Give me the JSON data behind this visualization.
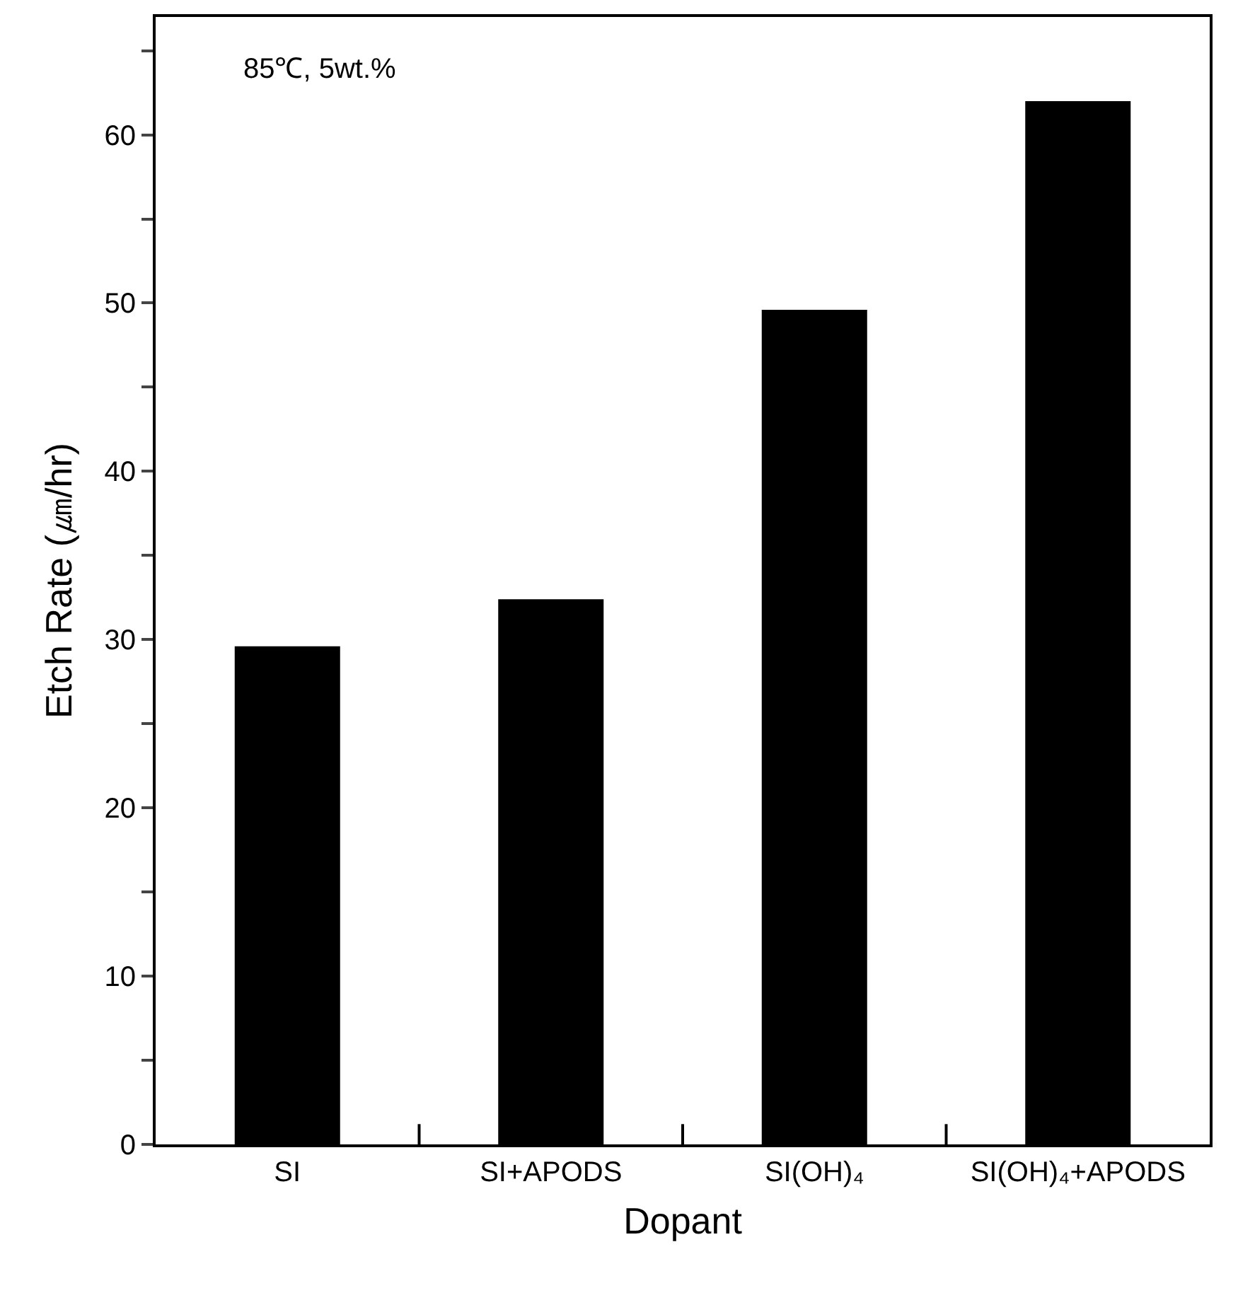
{
  "chart_data": {
    "type": "bar",
    "xlabel": "Dopant",
    "ylabel": "Etch Rate (㎛/hr)",
    "categories": [
      "SI",
      "SI+APODS",
      "SI(OH)₄",
      "SI(OH)₄+APODS"
    ],
    "values": [
      29.6,
      32.4,
      49.6,
      62
    ],
    "color": "#000000",
    "ylim": [
      0,
      67
    ],
    "yticks": [
      0,
      {
        "value": 5,
        "label": null
      },
      10,
      {
        "value": 15,
        "label": null
      },
      20,
      {
        "value": 25,
        "label": null
      },
      30,
      {
        "value": 35,
        "label": null
      },
      40,
      {
        "value": 45,
        "label": null
      },
      50,
      {
        "value": 55,
        "label": null
      },
      60,
      {
        "value": 65,
        "label": null
      }
    ],
    "annotations": [
      "85℃, 5wt.%"
    ]
  }
}
